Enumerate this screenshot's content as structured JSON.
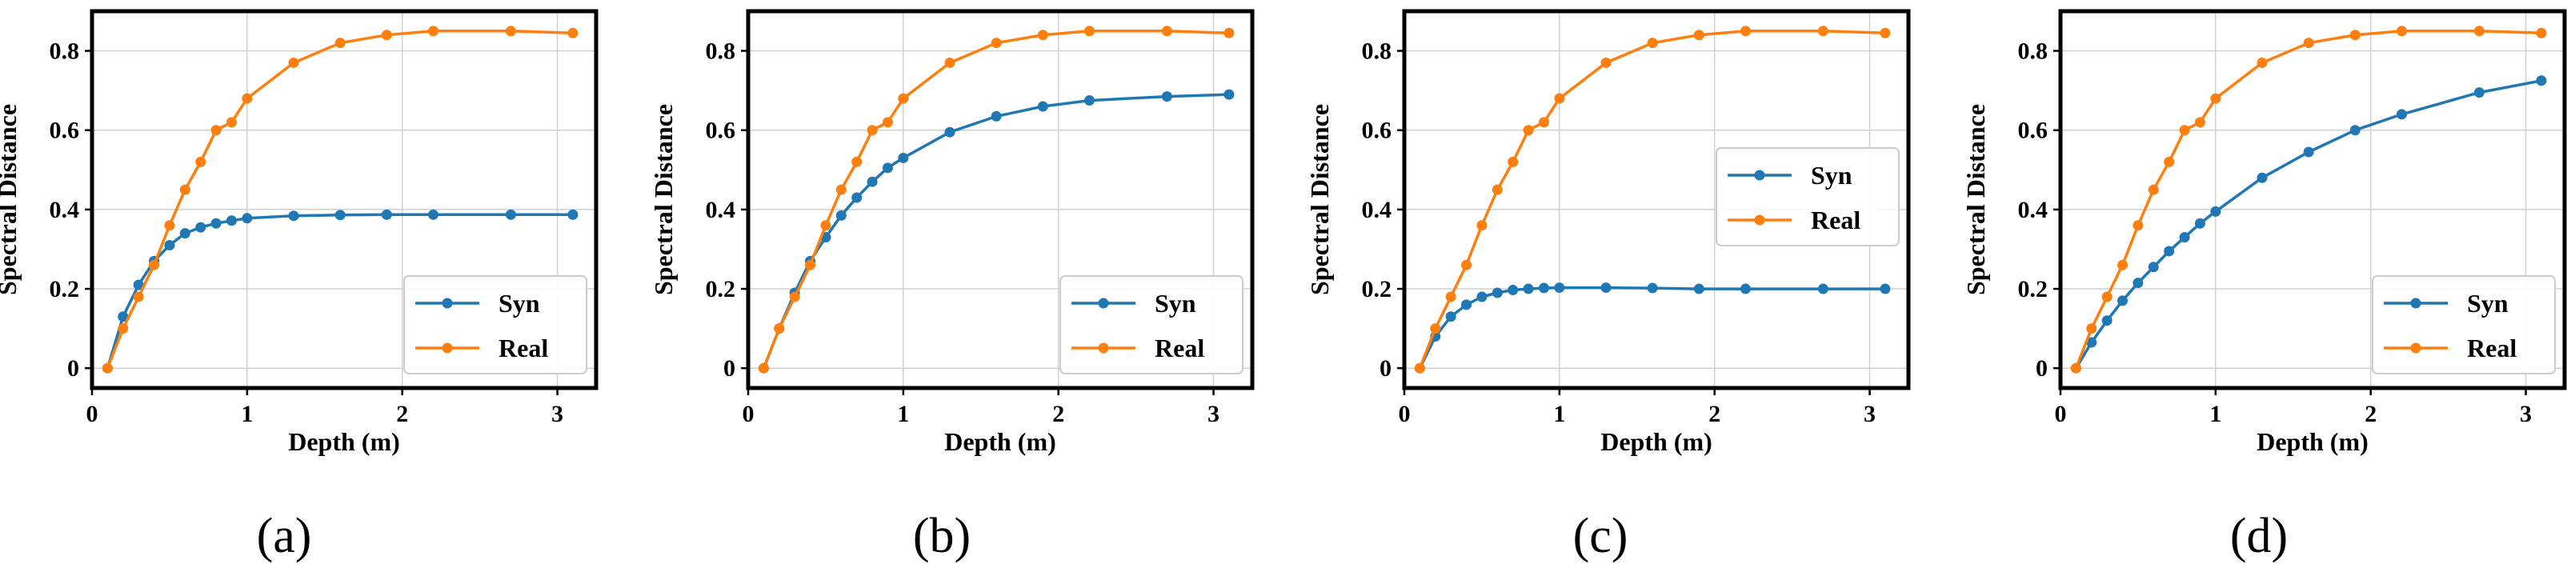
{
  "chart_data": [
    {
      "type": "line",
      "caption": "(a)",
      "xlabel": "Depth (m)",
      "ylabel": "Spectral Distance",
      "xlim": [
        0,
        3.25
      ],
      "ylim": [
        -0.05,
        0.9
      ],
      "xticks": [
        0,
        1,
        2,
        3
      ],
      "yticks": [
        0.0,
        0.2,
        0.4,
        0.6,
        0.8
      ],
      "grid": true,
      "legend_position": "lower-right",
      "x": [
        0.1,
        0.2,
        0.3,
        0.4,
        0.5,
        0.6,
        0.7,
        0.8,
        0.9,
        1.0,
        1.3,
        1.6,
        1.9,
        2.2,
        2.7,
        3.1
      ],
      "series": [
        {
          "name": "Syn",
          "color": "#1f77b4",
          "values": [
            0.0,
            0.13,
            0.21,
            0.27,
            0.31,
            0.34,
            0.355,
            0.365,
            0.372,
            0.378,
            0.384,
            0.386,
            0.387,
            0.387,
            0.387,
            0.387
          ]
        },
        {
          "name": "Real",
          "color": "#ff7f0e",
          "values": [
            0.0,
            0.1,
            0.18,
            0.26,
            0.36,
            0.45,
            0.52,
            0.6,
            0.62,
            0.68,
            0.77,
            0.82,
            0.84,
            0.85,
            0.85,
            0.845
          ]
        }
      ]
    },
    {
      "type": "line",
      "caption": "(b)",
      "xlabel": "Depth (m)",
      "ylabel": "Spectral Distance",
      "xlim": [
        0,
        3.25
      ],
      "ylim": [
        -0.05,
        0.9
      ],
      "xticks": [
        0,
        1,
        2,
        3
      ],
      "yticks": [
        0.0,
        0.2,
        0.4,
        0.6,
        0.8
      ],
      "grid": true,
      "legend_position": "lower-right",
      "x": [
        0.1,
        0.2,
        0.3,
        0.4,
        0.5,
        0.6,
        0.7,
        0.8,
        0.9,
        1.0,
        1.3,
        1.6,
        1.9,
        2.2,
        2.7,
        3.1
      ],
      "series": [
        {
          "name": "Syn",
          "color": "#1f77b4",
          "values": [
            0.0,
            0.1,
            0.19,
            0.27,
            0.33,
            0.385,
            0.43,
            0.47,
            0.505,
            0.53,
            0.595,
            0.635,
            0.66,
            0.675,
            0.685,
            0.69
          ]
        },
        {
          "name": "Real",
          "color": "#ff7f0e",
          "values": [
            0.0,
            0.1,
            0.18,
            0.26,
            0.36,
            0.45,
            0.52,
            0.6,
            0.62,
            0.68,
            0.77,
            0.82,
            0.84,
            0.85,
            0.85,
            0.845
          ]
        }
      ]
    },
    {
      "type": "line",
      "caption": "(c)",
      "xlabel": "Depth (m)",
      "ylabel": "Spectral Distance",
      "xlim": [
        0,
        3.25
      ],
      "ylim": [
        -0.05,
        0.9
      ],
      "xticks": [
        0,
        1,
        2,
        3
      ],
      "yticks": [
        0.0,
        0.2,
        0.4,
        0.6,
        0.8
      ],
      "grid": true,
      "legend_position": "center-right",
      "x": [
        0.1,
        0.2,
        0.3,
        0.4,
        0.5,
        0.6,
        0.7,
        0.8,
        0.9,
        1.0,
        1.3,
        1.6,
        1.9,
        2.2,
        2.7,
        3.1
      ],
      "series": [
        {
          "name": "Syn",
          "color": "#1f77b4",
          "values": [
            0.0,
            0.08,
            0.13,
            0.16,
            0.18,
            0.19,
            0.197,
            0.2,
            0.202,
            0.203,
            0.203,
            0.202,
            0.2,
            0.2,
            0.2,
            0.2
          ]
        },
        {
          "name": "Real",
          "color": "#ff7f0e",
          "values": [
            0.0,
            0.1,
            0.18,
            0.26,
            0.36,
            0.45,
            0.52,
            0.6,
            0.62,
            0.68,
            0.77,
            0.82,
            0.84,
            0.85,
            0.85,
            0.845
          ]
        }
      ]
    },
    {
      "type": "line",
      "caption": "(d)",
      "xlabel": "Depth (m)",
      "ylabel": "Spectral Distance",
      "xlim": [
        0,
        3.25
      ],
      "ylim": [
        -0.05,
        0.9
      ],
      "xticks": [
        0,
        1,
        2,
        3
      ],
      "yticks": [
        0.0,
        0.2,
        0.4,
        0.6,
        0.8
      ],
      "grid": true,
      "legend_position": "lower-right",
      "x": [
        0.1,
        0.2,
        0.3,
        0.4,
        0.5,
        0.6,
        0.7,
        0.8,
        0.9,
        1.0,
        1.3,
        1.6,
        1.9,
        2.2,
        2.7,
        3.1
      ],
      "series": [
        {
          "name": "Syn",
          "color": "#1f77b4",
          "values": [
            0.0,
            0.065,
            0.12,
            0.17,
            0.215,
            0.255,
            0.295,
            0.33,
            0.365,
            0.395,
            0.48,
            0.545,
            0.6,
            0.64,
            0.695,
            0.725
          ]
        },
        {
          "name": "Real",
          "color": "#ff7f0e",
          "values": [
            0.0,
            0.1,
            0.18,
            0.26,
            0.36,
            0.45,
            0.52,
            0.6,
            0.62,
            0.68,
            0.77,
            0.82,
            0.84,
            0.85,
            0.85,
            0.845
          ]
        }
      ]
    }
  ]
}
